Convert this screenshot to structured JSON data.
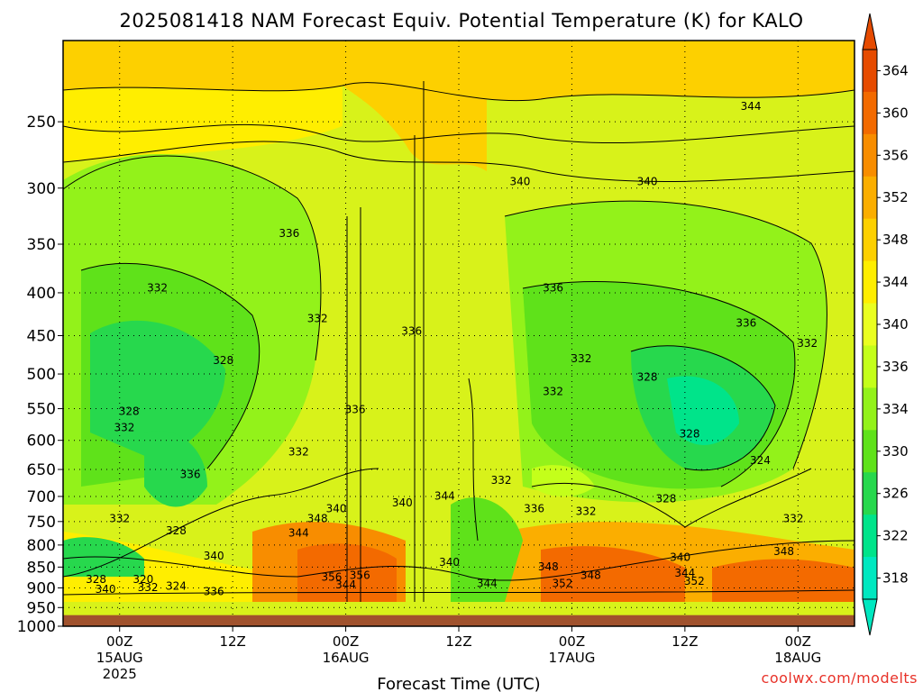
{
  "title": "2025081418 NAM Forecast Equiv. Potential Temperature (K) for KALO",
  "credit": "coolwx.com/modelts",
  "chart_data": {
    "type": "heatmap",
    "title": "2025081418 NAM Forecast Equiv. Potential Temperature (K) for KALO",
    "xlabel": "Forecast Time (UTC)",
    "ylabel": "",
    "x_ticks": [
      {
        "label": "00Z",
        "sub": [
          "15AUG",
          "2025"
        ],
        "hour": 6
      },
      {
        "label": "12Z",
        "sub": [],
        "hour": 18
      },
      {
        "label": "00Z",
        "sub": [
          "16AUG"
        ],
        "hour": 30
      },
      {
        "label": "12Z",
        "sub": [],
        "hour": 42
      },
      {
        "label": "00Z",
        "sub": [
          "17AUG"
        ],
        "hour": 54
      },
      {
        "label": "12Z",
        "sub": [],
        "hour": 66
      },
      {
        "label": "00Z",
        "sub": [
          "18AUG"
        ],
        "hour": 78
      }
    ],
    "x_range_hours": [
      0,
      84
    ],
    "y_ticks": [
      250,
      300,
      350,
      400,
      450,
      500,
      550,
      600,
      650,
      700,
      750,
      800,
      850,
      900,
      950,
      1000
    ],
    "y_range_hpa": [
      200,
      1000
    ],
    "y_scale": "log-pressure",
    "ground_level_hpa": 970,
    "colorbar": {
      "ticks": [
        364,
        360,
        356,
        352,
        348,
        344,
        340,
        336,
        334,
        330,
        326,
        322,
        318
      ],
      "colors": [
        "#e64b00",
        "#f36a00",
        "#f88d00",
        "#fbae00",
        "#fdd000",
        "#ffee00",
        "#eaff20",
        "#c4ff1a",
        "#93f21a",
        "#5fe21a",
        "#27d84d",
        "#00e48a",
        "#00e8c0"
      ]
    },
    "contour_labels": [
      {
        "text": "344",
        "hour": 73,
        "p": 240
      },
      {
        "text": "340",
        "hour": 48.5,
        "p": 295
      },
      {
        "text": "340",
        "hour": 62,
        "p": 295
      },
      {
        "text": "336",
        "hour": 24,
        "p": 340
      },
      {
        "text": "332",
        "hour": 10,
        "p": 395
      },
      {
        "text": "332",
        "hour": 27,
        "p": 430
      },
      {
        "text": "336",
        "hour": 37,
        "p": 445
      },
      {
        "text": "336",
        "hour": 52,
        "p": 395
      },
      {
        "text": "336",
        "hour": 72.5,
        "p": 435
      },
      {
        "text": "332",
        "hour": 79,
        "p": 460
      },
      {
        "text": "332",
        "hour": 55,
        "p": 480
      },
      {
        "text": "328",
        "hour": 17,
        "p": 482
      },
      {
        "text": "328",
        "hour": 62,
        "p": 505
      },
      {
        "text": "332",
        "hour": 52,
        "p": 525
      },
      {
        "text": "336",
        "hour": 31,
        "p": 552
      },
      {
        "text": "328",
        "hour": 7,
        "p": 555
      },
      {
        "text": "332",
        "hour": 6.5,
        "p": 580
      },
      {
        "text": "328",
        "hour": 66.5,
        "p": 590
      },
      {
        "text": "332",
        "hour": 25,
        "p": 620
      },
      {
        "text": "324",
        "hour": 74,
        "p": 635
      },
      {
        "text": "336",
        "hour": 13.5,
        "p": 660
      },
      {
        "text": "332",
        "hour": 46.5,
        "p": 670
      },
      {
        "text": "344",
        "hour": 40.5,
        "p": 700
      },
      {
        "text": "340",
        "hour": 36,
        "p": 713
      },
      {
        "text": "328",
        "hour": 64,
        "p": 705
      },
      {
        "text": "340",
        "hour": 29,
        "p": 725
      },
      {
        "text": "336",
        "hour": 50,
        "p": 725
      },
      {
        "text": "332",
        "hour": 55.5,
        "p": 730
      },
      {
        "text": "348",
        "hour": 27,
        "p": 745
      },
      {
        "text": "332",
        "hour": 6,
        "p": 745
      },
      {
        "text": "332",
        "hour": 77.5,
        "p": 745
      },
      {
        "text": "328",
        "hour": 12,
        "p": 770
      },
      {
        "text": "344",
        "hour": 25,
        "p": 775
      },
      {
        "text": "348",
        "hour": 76.5,
        "p": 815
      },
      {
        "text": "340",
        "hour": 16,
        "p": 825
      },
      {
        "text": "340",
        "hour": 65.5,
        "p": 828
      },
      {
        "text": "340",
        "hour": 41,
        "p": 840
      },
      {
        "text": "348",
        "hour": 51.5,
        "p": 850
      },
      {
        "text": "344",
        "hour": 66,
        "p": 865
      },
      {
        "text": "348",
        "hour": 56,
        "p": 870
      },
      {
        "text": "356",
        "hour": 28.5,
        "p": 875
      },
      {
        "text": "356",
        "hour": 31.5,
        "p": 870
      },
      {
        "text": "328",
        "hour": 3.5,
        "p": 880
      },
      {
        "text": "320",
        "hour": 8.5,
        "p": 880
      },
      {
        "text": "352",
        "hour": 67,
        "p": 885
      },
      {
        "text": "344",
        "hour": 45,
        "p": 890
      },
      {
        "text": "352",
        "hour": 53,
        "p": 890
      },
      {
        "text": "344",
        "hour": 30,
        "p": 893
      },
      {
        "text": "332",
        "hour": 9,
        "p": 900
      },
      {
        "text": "324",
        "hour": 12,
        "p": 897
      },
      {
        "text": "340",
        "hour": 4.5,
        "p": 905
      },
      {
        "text": "336",
        "hour": 16,
        "p": 910
      }
    ]
  }
}
